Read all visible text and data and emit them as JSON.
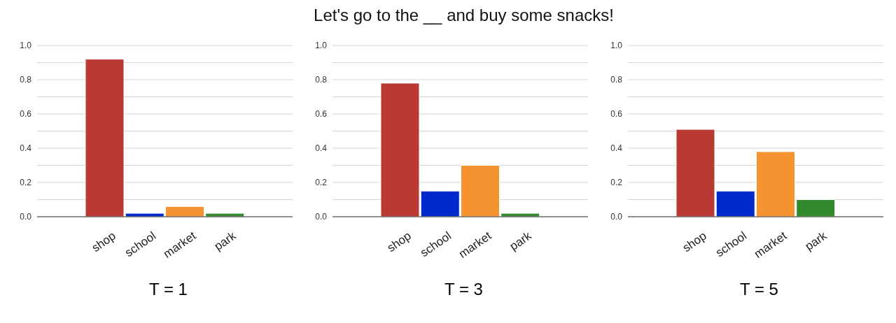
{
  "chart_data": [
    {
      "type": "bar",
      "xlabel": "T = 1",
      "categories": [
        "shop",
        "school",
        "market",
        "park"
      ],
      "values": [
        0.92,
        0.02,
        0.06,
        0.02
      ],
      "colors": [
        "#b83a32",
        "#0029cc",
        "#f59331",
        "#338a2e"
      ],
      "ylim": [
        0,
        1
      ],
      "yticks": [
        {
          "value": 0,
          "label": "0.0"
        },
        {
          "value": 0.1,
          "label": null
        },
        0.2,
        {
          "value": 0.3,
          "label": null
        },
        0.4,
        {
          "value": 0.5,
          "label": null
        },
        0.6,
        {
          "value": 0.7,
          "label": null
        },
        0.8,
        {
          "value": 0.9,
          "label": null
        },
        {
          "value": 1,
          "label": "1.0"
        }
      ],
      "grid": "y"
    },
    {
      "type": "bar",
      "title": "Let's go to the __ and buy some snacks!",
      "xlabel": "T = 3",
      "categories": [
        "shop",
        "school",
        "market",
        "park"
      ],
      "values": [
        0.78,
        0.15,
        0.3,
        0.02
      ],
      "colors": [
        "#b83a32",
        "#0029cc",
        "#f59331",
        "#338a2e"
      ],
      "ylim": [
        0,
        1
      ],
      "yticks": [
        {
          "value": 0,
          "label": "0.0"
        },
        {
          "value": 0.1,
          "label": null
        },
        0.2,
        {
          "value": 0.3,
          "label": null
        },
        0.4,
        {
          "value": 0.5,
          "label": null
        },
        0.6,
        {
          "value": 0.7,
          "label": null
        },
        0.8,
        {
          "value": 0.9,
          "label": null
        },
        {
          "value": 1,
          "label": "1.0"
        }
      ],
      "grid": "y"
    },
    {
      "type": "bar",
      "xlabel": "T = 5",
      "categories": [
        "shop",
        "school",
        "market",
        "park"
      ],
      "values": [
        0.51,
        0.15,
        0.38,
        0.1
      ],
      "colors": [
        "#b83a32",
        "#0029cc",
        "#f59331",
        "#338a2e"
      ],
      "ylim": [
        0,
        1
      ],
      "yticks": [
        {
          "value": 0,
          "label": "0.0"
        },
        {
          "value": 0.1,
          "label": null
        },
        0.2,
        {
          "value": 0.3,
          "label": null
        },
        0.4,
        {
          "value": 0.5,
          "label": null
        },
        0.6,
        {
          "value": 0.7,
          "label": null
        },
        0.8,
        {
          "value": 0.9,
          "label": null
        },
        {
          "value": 1,
          "label": "1.0"
        }
      ],
      "grid": "y"
    }
  ]
}
